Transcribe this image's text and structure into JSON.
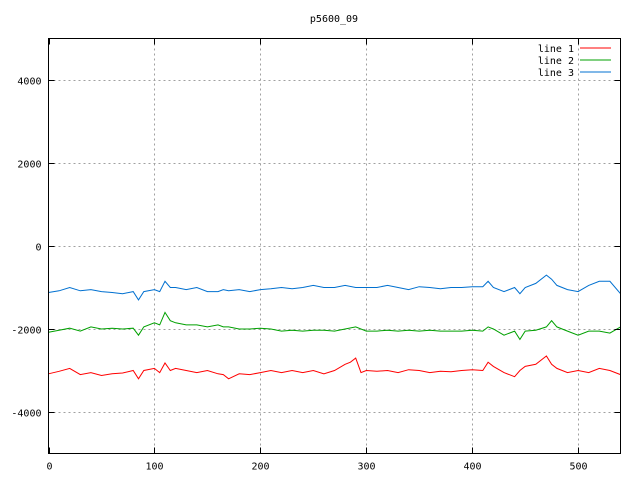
{
  "chart_data": {
    "type": "line",
    "title": "p5600_09",
    "xlabel": "",
    "ylabel": "",
    "xlim": [
      0,
      540
    ],
    "ylim": [
      -5000,
      5000
    ],
    "x_ticks": [
      0,
      100,
      200,
      300,
      400,
      500
    ],
    "y_ticks": [
      -4000,
      -2000,
      0,
      2000,
      4000
    ],
    "grid": true,
    "legend_position": "top-right",
    "series": [
      {
        "name": "line 1",
        "color": "#ff0000",
        "x": [
          0,
          10,
          20,
          30,
          40,
          50,
          60,
          70,
          80,
          85,
          90,
          100,
          105,
          110,
          115,
          120,
          130,
          140,
          150,
          160,
          165,
          170,
          180,
          190,
          200,
          210,
          220,
          230,
          240,
          250,
          260,
          270,
          280,
          285,
          290,
          295,
          300,
          310,
          320,
          330,
          340,
          350,
          360,
          370,
          380,
          390,
          400,
          410,
          415,
          420,
          430,
          440,
          445,
          450,
          460,
          470,
          475,
          480,
          490,
          500,
          510,
          520,
          530,
          540
        ],
        "y": [
          -3080,
          -3020,
          -2950,
          -3100,
          -3050,
          -3120,
          -3080,
          -3060,
          -3000,
          -3200,
          -3000,
          -2950,
          -3050,
          -2820,
          -3000,
          -2950,
          -3000,
          -3050,
          -3000,
          -3080,
          -3100,
          -3200,
          -3080,
          -3100,
          -3050,
          -3000,
          -3050,
          -3000,
          -3050,
          -3000,
          -3080,
          -3000,
          -2850,
          -2800,
          -2700,
          -3050,
          -3000,
          -3020,
          -3000,
          -3050,
          -2980,
          -3000,
          -3050,
          -3020,
          -3030,
          -3000,
          -2980,
          -3000,
          -2800,
          -2900,
          -3050,
          -3150,
          -3000,
          -2900,
          -2850,
          -2650,
          -2850,
          -2950,
          -3050,
          -3000,
          -3050,
          -2950,
          -3000,
          -3100
        ]
      },
      {
        "name": "line 2",
        "color": "#00a000",
        "x": [
          0,
          10,
          20,
          30,
          40,
          50,
          60,
          70,
          80,
          85,
          90,
          100,
          105,
          110,
          115,
          120,
          130,
          140,
          150,
          160,
          165,
          170,
          180,
          190,
          200,
          210,
          220,
          230,
          240,
          250,
          260,
          270,
          280,
          290,
          300,
          310,
          320,
          330,
          340,
          350,
          360,
          370,
          380,
          390,
          400,
          410,
          415,
          420,
          430,
          440,
          445,
          450,
          460,
          470,
          475,
          480,
          490,
          500,
          510,
          520,
          530,
          540
        ],
        "y": [
          -2080,
          -2030,
          -1980,
          -2050,
          -1950,
          -2000,
          -1980,
          -2000,
          -1980,
          -2150,
          -1950,
          -1850,
          -1900,
          -1600,
          -1800,
          -1850,
          -1900,
          -1900,
          -1950,
          -1900,
          -1950,
          -1950,
          -2000,
          -2000,
          -1980,
          -2000,
          -2050,
          -2030,
          -2050,
          -2030,
          -2030,
          -2050,
          -2000,
          -1950,
          -2050,
          -2050,
          -2030,
          -2050,
          -2030,
          -2050,
          -2030,
          -2050,
          -2050,
          -2050,
          -2030,
          -2050,
          -1950,
          -2000,
          -2150,
          -2050,
          -2250,
          -2050,
          -2030,
          -1950,
          -1800,
          -1950,
          -2050,
          -2150,
          -2050,
          -2050,
          -2100,
          -1950
        ]
      },
      {
        "name": "line 3",
        "color": "#0070d0",
        "x": [
          0,
          10,
          20,
          30,
          40,
          50,
          60,
          70,
          80,
          85,
          90,
          100,
          105,
          110,
          115,
          120,
          130,
          140,
          150,
          160,
          165,
          170,
          180,
          190,
          200,
          210,
          220,
          230,
          240,
          250,
          260,
          270,
          280,
          290,
          300,
          310,
          320,
          330,
          340,
          350,
          360,
          370,
          380,
          390,
          400,
          410,
          415,
          420,
          430,
          440,
          445,
          450,
          460,
          470,
          475,
          480,
          490,
          500,
          510,
          520,
          530,
          540
        ],
        "y": [
          -1120,
          -1080,
          -1000,
          -1080,
          -1050,
          -1100,
          -1120,
          -1150,
          -1100,
          -1300,
          -1100,
          -1050,
          -1100,
          -850,
          -1000,
          -1000,
          -1050,
          -1000,
          -1100,
          -1100,
          -1050,
          -1080,
          -1050,
          -1100,
          -1050,
          -1030,
          -1000,
          -1030,
          -1000,
          -950,
          -1000,
          -1000,
          -950,
          -1000,
          -1000,
          -1000,
          -950,
          -1000,
          -1050,
          -980,
          -1000,
          -1030,
          -1000,
          -1000,
          -980,
          -980,
          -850,
          -1000,
          -1100,
          -1000,
          -1150,
          -1000,
          -900,
          -700,
          -800,
          -950,
          -1050,
          -1100,
          -950,
          -850,
          -850,
          -1150
        ]
      }
    ]
  }
}
